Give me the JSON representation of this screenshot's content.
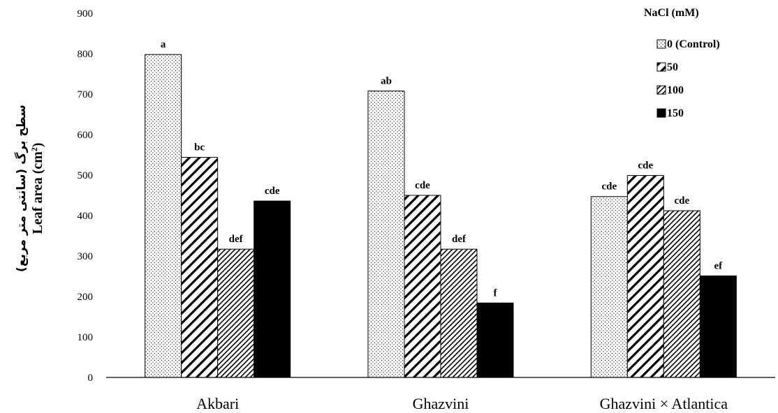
{
  "chart_data": {
    "type": "bar",
    "categories": [
      "Akbari",
      "Ghazvini",
      "Ghazvini × Atlantica"
    ],
    "series": [
      {
        "name": "0 (Control)",
        "pattern": "dots",
        "values": [
          798,
          708,
          447
        ],
        "labels": [
          "a",
          "ab",
          "cde"
        ]
      },
      {
        "name": "50",
        "pattern": "diag-wide",
        "values": [
          544,
          450,
          499
        ],
        "labels": [
          "bc",
          "cde",
          "cde"
        ]
      },
      {
        "name": "100",
        "pattern": "diag-dense",
        "values": [
          317,
          317,
          412
        ],
        "labels": [
          "def",
          "def",
          "cde"
        ]
      },
      {
        "name": "150",
        "pattern": "solid",
        "values": [
          436,
          184,
          251
        ],
        "labels": [
          "cde",
          "f",
          "ef"
        ]
      }
    ],
    "ylabel": "Leaf area (cm2)",
    "ylabel_fa": "سطح برگ (سانتی متر مربع)",
    "ylim": [
      0,
      900
    ],
    "yticks": [
      "0",
      "100",
      "200",
      "300",
      "400",
      "500",
      "600",
      "700",
      "800",
      "900"
    ],
    "legend_title": "NaCl (mM)",
    "legend_position": "top-right",
    "grid": false,
    "colors": {
      "bar_stroke": "#000000",
      "solid_fill": "#000000",
      "background": "#ffffff"
    }
  }
}
